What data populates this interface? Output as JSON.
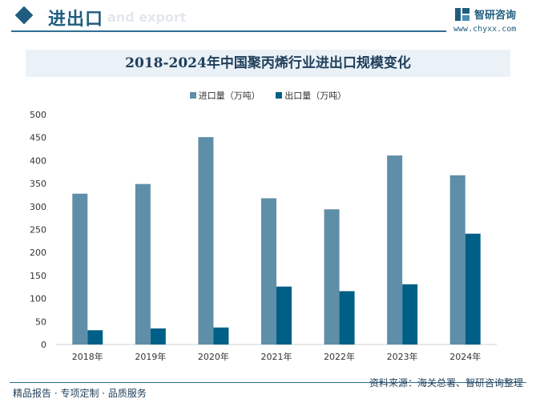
{
  "header": {
    "section_title": "进出口",
    "section_subtitle": "and export",
    "logo_name": "智研咨询",
    "logo_url": "www.chyxx.com"
  },
  "footer": {
    "left_text": "精品报告 · 专项定制 · 品质服务",
    "right_text": "资料来源：海关总署、智研咨询整理"
  },
  "colors": {
    "import": "#5f8ea8",
    "export": "#005f86",
    "accent": "#1f5d80"
  },
  "chart_data": {
    "type": "bar",
    "title": "2018-2024年中国聚丙烯行业进出口规模变化",
    "categories": [
      "2018年",
      "2019年",
      "2020年",
      "2021年",
      "2022年",
      "2023年",
      "2024年"
    ],
    "series": [
      {
        "name": "进口量（万吨）",
        "values": [
          328,
          349,
          451,
          318,
          294,
          411,
          368
        ]
      },
      {
        "name": "出口量（万吨）",
        "values": [
          31,
          35,
          37,
          126,
          116,
          131,
          241
        ]
      }
    ],
    "ylim": [
      0,
      500
    ],
    "yticks": [
      "0",
      "50",
      "100",
      "150",
      "200",
      "250",
      "300",
      "350",
      "400",
      "450",
      "500"
    ],
    "grid": false,
    "legend_position": "top-center"
  }
}
